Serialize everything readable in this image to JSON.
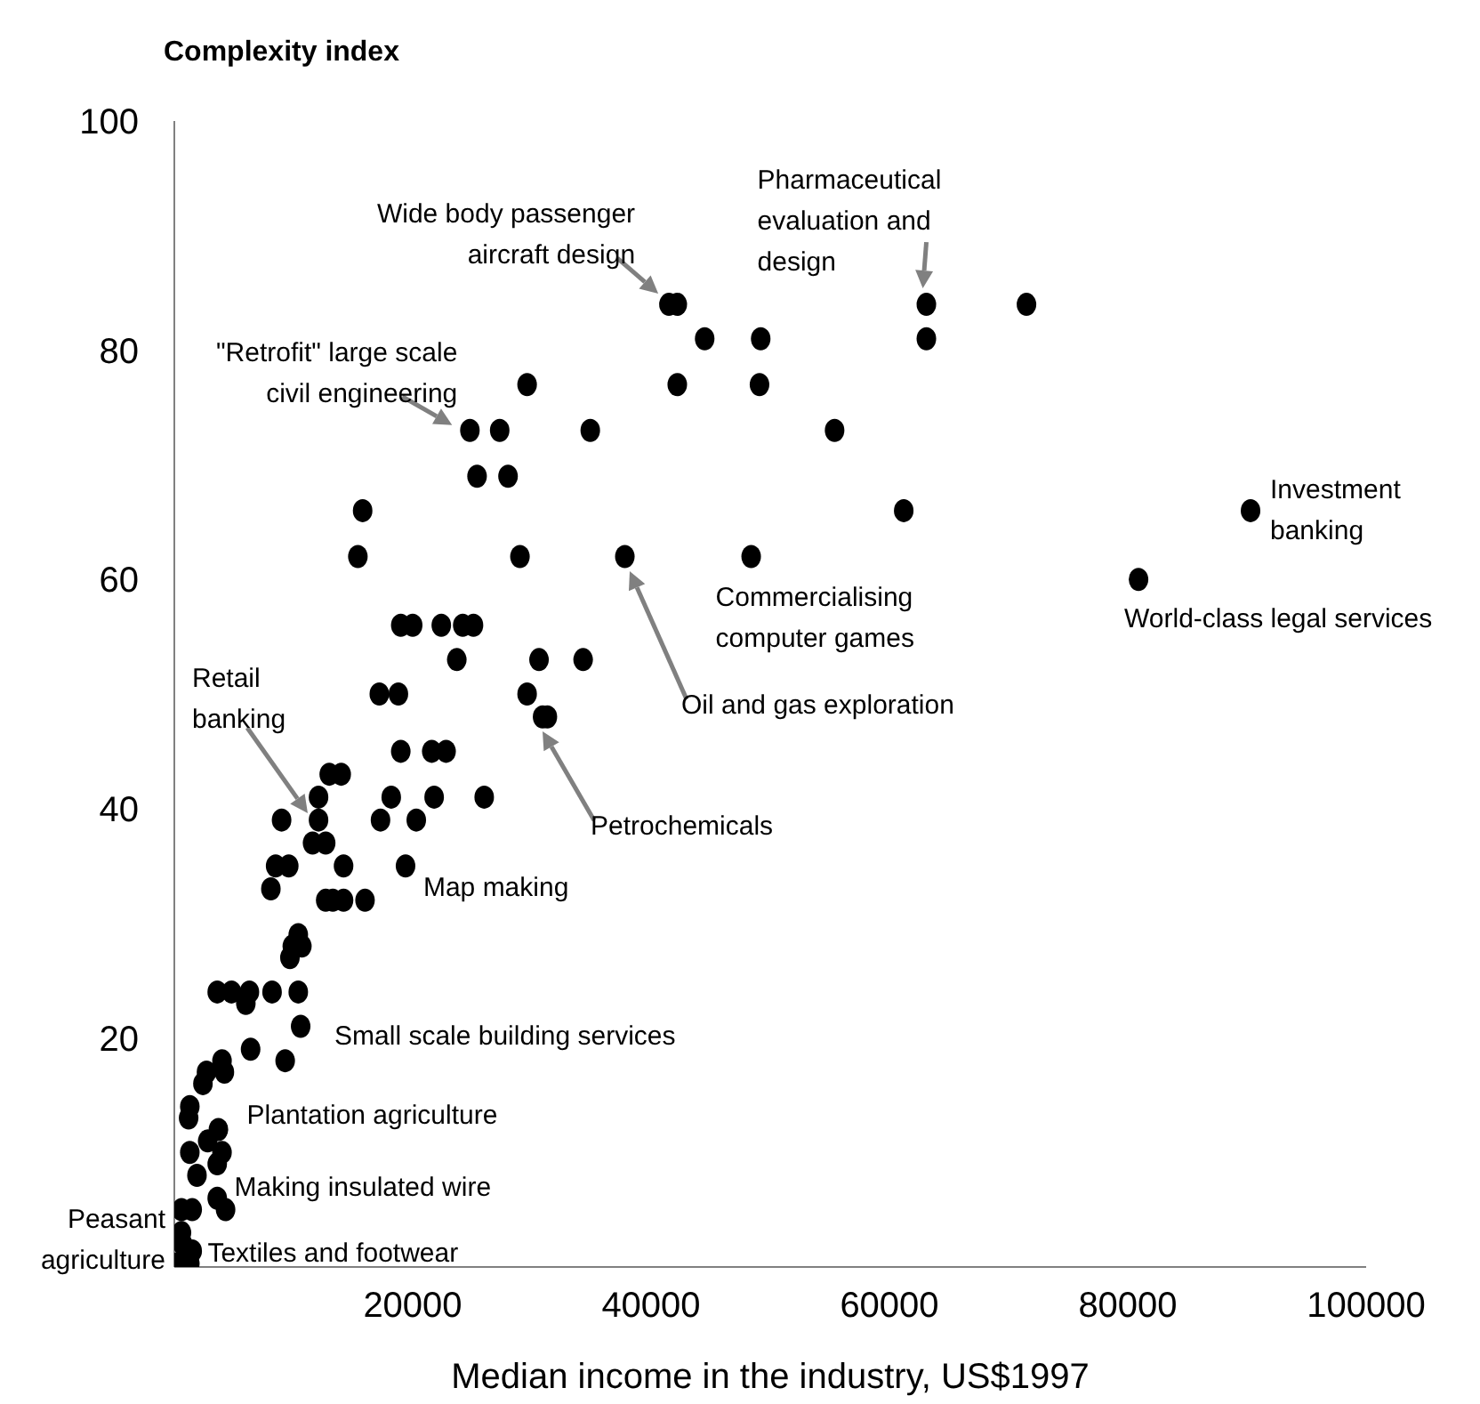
{
  "chart_data": {
    "type": "scatter",
    "ylabel": "Complexity index",
    "xlabel": "Median income in the industry, US$1997",
    "xlim": [
      0,
      100000
    ],
    "xticks": [
      20000,
      40000,
      60000,
      80000,
      100000
    ],
    "ylim": [
      0,
      100
    ],
    "yticks": [
      20,
      40,
      60,
      80,
      100
    ],
    "marker": "circle",
    "series": [
      {
        "color": "#000000",
        "x": [
          41500,
          42200,
          44500,
          49200,
          63100,
          71500,
          63100,
          42200,
          49100,
          29600,
          24800,
          27300,
          34900,
          55400,
          25400,
          28000,
          15800,
          15400,
          29000,
          37800,
          48400,
          61200,
          90300,
          80900,
          19000,
          20000,
          22400,
          24200,
          25100,
          23700,
          30600,
          34300,
          17200,
          18800,
          29600,
          30900,
          31300,
          19000,
          21600,
          22800,
          13000,
          14000,
          12100,
          18200,
          21800,
          26000,
          9000,
          12100,
          17300,
          20300,
          11600,
          12700,
          8500,
          9600,
          14200,
          19400,
          8100,
          12700,
          13300,
          14200,
          16000,
          9900,
          10400,
          9700,
          10700,
          3600,
          4800,
          6300,
          8200,
          10400,
          6000,
          10600,
          6400,
          9300,
          4000,
          4200,
          2700,
          2400,
          1300,
          1200,
          3700,
          2800,
          4000,
          3600,
          1300,
          1900,
          3600,
          4300,
          600,
          1500,
          600,
          700,
          1500,
          300,
          1300
        ],
        "values": [
          84,
          84,
          81,
          81,
          84,
          84,
          81,
          77,
          77,
          77,
          73,
          73,
          73,
          73,
          69,
          69,
          66,
          62,
          62,
          62,
          62,
          66,
          66,
          60,
          56,
          56,
          56,
          56,
          56,
          53,
          53,
          53,
          50,
          50,
          50,
          48,
          48,
          45,
          45,
          45,
          43,
          43,
          41,
          41,
          41,
          41,
          39,
          39,
          39,
          39,
          37,
          37,
          35,
          35,
          35,
          35,
          33,
          32,
          32,
          32,
          32,
          28,
          29,
          27,
          28,
          24,
          24,
          24,
          24,
          24,
          23,
          21,
          19,
          18,
          18,
          17,
          17,
          16,
          14,
          13,
          12,
          11,
          10,
          9,
          10,
          8,
          6,
          5,
          5,
          5,
          3,
          2,
          1.4,
          0.3,
          0.3
        ]
      }
    ],
    "annotations": [
      {
        "text": "Wide body passenger aircraft design",
        "x": 41500,
        "y": 84
      },
      {
        "text": "Pharmaceutical evaluation and design",
        "x": 63100,
        "y": 84
      },
      {
        "text": "\"Retrofit\" large scale civil engineering",
        "x": 24800,
        "y": 73
      },
      "Retail banking",
      "Oil and gas exploration",
      "Petrochemicals",
      {
        "text": "Commercialising computer games",
        "x": 48400,
        "y": 62
      },
      {
        "text": "Investment banking",
        "x": 90300,
        "y": 66
      },
      {
        "text": "World-class legal services",
        "x": 80900,
        "y": 60
      },
      {
        "text": "Map making",
        "x": 19400,
        "y": 35
      },
      {
        "text": "Small scale building services",
        "x": 10600,
        "y": 21
      },
      {
        "text": "Plantation agriculture",
        "x": 3700,
        "y": 12
      },
      {
        "text": "Making insulated wire",
        "x": 4300,
        "y": 5
      },
      {
        "text": "Textiles and footwear",
        "x": 1300,
        "y": 0.3
      },
      {
        "text": "Peasant agriculture",
        "x": 300,
        "y": 0.3
      }
    ]
  }
}
